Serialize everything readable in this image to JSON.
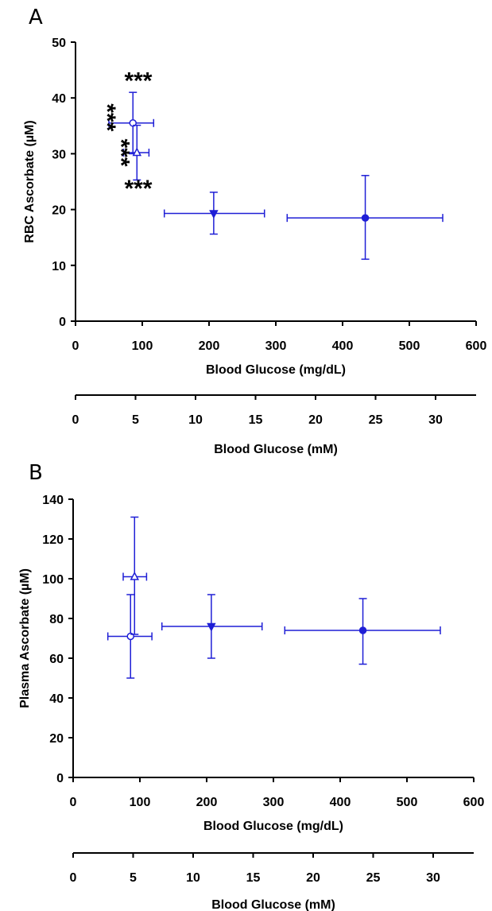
{
  "colors": {
    "series": "#1f1fd6",
    "axis": "#000000"
  },
  "chart_data": [
    {
      "type": "scatter",
      "panel_label": "A",
      "xlabel": "Blood Glucose (mg/dL)",
      "ylabel": "RBC Ascorbate (µM)",
      "xlim": [
        0,
        600
      ],
      "ylim": [
        0,
        50
      ],
      "xticks": [
        0,
        100,
        200,
        300,
        400,
        500,
        600
      ],
      "yticks": [
        0,
        10,
        20,
        30,
        40,
        50
      ],
      "secondary_xaxis": {
        "xlabel": "Blood Glucose (mM)",
        "ticks": [
          "0",
          "5",
          "10",
          "15",
          "20",
          "25",
          "30"
        ]
      },
      "points": [
        {
          "marker": "open-circle",
          "x": 86,
          "y": 35.5,
          "x_err": [
            50,
            117
          ],
          "y_err": [
            30,
            41
          ]
        },
        {
          "marker": "open-triangle",
          "x": 92,
          "y": 30.2,
          "x_err": [
            72,
            110
          ],
          "y_err": [
            25.3,
            35.1
          ]
        },
        {
          "marker": "filled-triangle-down",
          "x": 207,
          "y": 19.3,
          "x_err": [
            133,
            283
          ],
          "y_err": [
            15.6,
            23.1
          ]
        },
        {
          "marker": "filled-circle",
          "x": 434,
          "y": 18.5,
          "x_err": [
            317,
            550
          ],
          "y_err": [
            11.1,
            26.1
          ]
        }
      ],
      "annotations": [
        {
          "text": "***",
          "rotated": false,
          "x": 94,
          "y": 42.8
        },
        {
          "text": "***",
          "rotated": true,
          "x": 45,
          "y": 36.5
        },
        {
          "text": "***",
          "rotated": true,
          "x": 66,
          "y": 30.2
        },
        {
          "text": "***",
          "rotated": false,
          "x": 94,
          "y": 23.5
        }
      ]
    },
    {
      "type": "scatter",
      "panel_label": "B",
      "xlabel": "Blood Glucose (mg/dL)",
      "ylabel": "Plasma Ascorbate (µM)",
      "xlim": [
        0,
        600
      ],
      "ylim": [
        0,
        140
      ],
      "xticks": [
        0,
        100,
        200,
        300,
        400,
        500,
        600
      ],
      "yticks": [
        0,
        20,
        40,
        60,
        80,
        100,
        120,
        140
      ],
      "secondary_xaxis": {
        "xlabel": "Blood Glucose (mM)",
        "ticks": [
          "0",
          "5",
          "10",
          "15",
          "20",
          "25",
          "30"
        ]
      },
      "points": [
        {
          "marker": "open-circle",
          "x": 86,
          "y": 71,
          "x_err": [
            52,
            118
          ],
          "y_err": [
            50,
            92
          ]
        },
        {
          "marker": "open-triangle",
          "x": 92,
          "y": 101,
          "x_err": [
            75,
            110
          ],
          "y_err": [
            72,
            131
          ]
        },
        {
          "marker": "filled-triangle-down",
          "x": 207,
          "y": 76,
          "x_err": [
            133,
            283
          ],
          "y_err": [
            60,
            92
          ]
        },
        {
          "marker": "filled-circle",
          "x": 434,
          "y": 74,
          "x_err": [
            317,
            550
          ],
          "y_err": [
            57,
            90
          ]
        }
      ]
    }
  ]
}
